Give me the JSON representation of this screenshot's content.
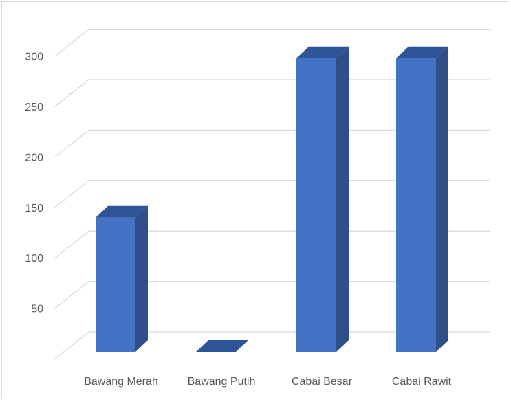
{
  "chart_data": {
    "type": "bar",
    "style": "3d-column",
    "categories": [
      "Bawang Merah",
      "Bawang Putih",
      "Cabai Besar",
      "Cabai Rawit"
    ],
    "series": [
      {
        "values": [
          133,
          0,
          291,
          291
        ]
      }
    ],
    "yticks": [
      "50",
      "100",
      "150",
      "200",
      "250",
      "300"
    ],
    "ylim": [
      0,
      300
    ],
    "grid": true,
    "legend": "none",
    "colors": {
      "bar_front": "#4472C4",
      "bar_side": "#2F4F8A",
      "bar_top": "#2E5597",
      "grid": "#d9d9d9",
      "text": "#595959"
    }
  }
}
